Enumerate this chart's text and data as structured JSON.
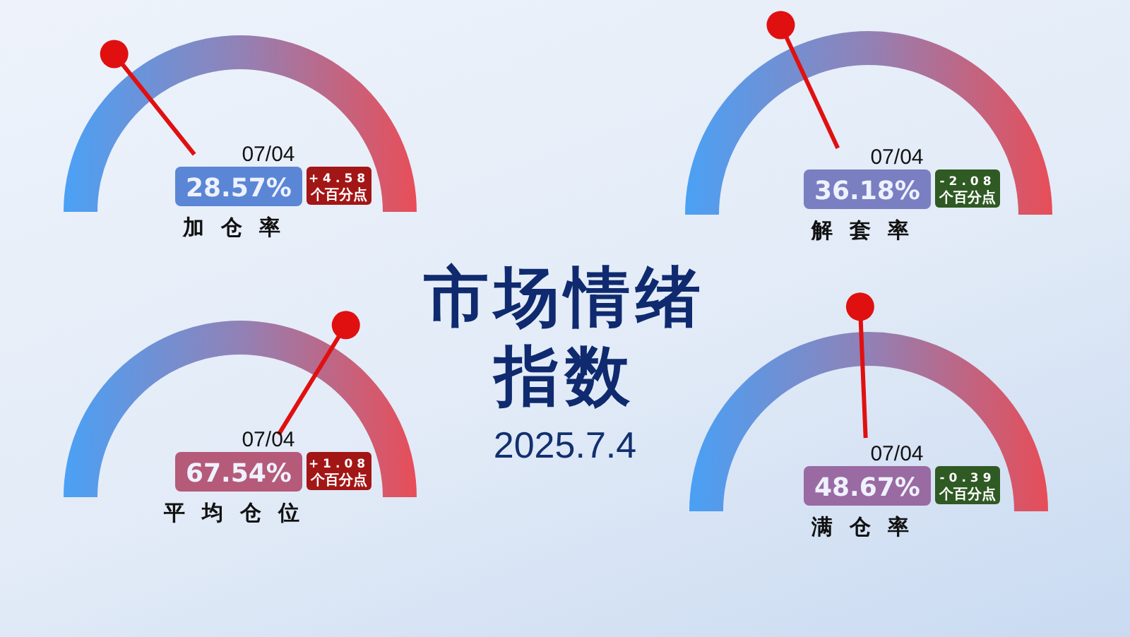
{
  "chart_data": [
    {
      "type": "other",
      "title": "加仓率",
      "values": [
        28.57
      ],
      "value_labels": [
        "28.57%"
      ],
      "annotations": [
        "07/04",
        "+4.58 个百分点"
      ],
      "color": "#5b86d6"
    },
    {
      "type": "other",
      "title": "解套率",
      "values": [
        36.18
      ],
      "value_labels": [
        "36.18%"
      ],
      "annotations": [
        "07/04",
        "-2.08 个百分点"
      ],
      "color": "#7a7fc2"
    },
    {
      "type": "other",
      "title": "市场情绪指数",
      "subtitle": "2025.7.4"
    },
    {
      "type": "other",
      "title": "平均仓位",
      "values": [
        67.54
      ],
      "value_labels": [
        "67.54%"
      ],
      "annotations": [
        "07/04",
        "+1.08 个百分点"
      ],
      "color": "#b55a78"
    },
    {
      "type": "other",
      "title": "满仓率",
      "values": [
        48.67
      ],
      "value_labels": [
        "48.67%"
      ],
      "annotations": [
        "07/04",
        "-0.39 个百分点"
      ],
      "color": "#9a6aa2"
    }
  ]
}
